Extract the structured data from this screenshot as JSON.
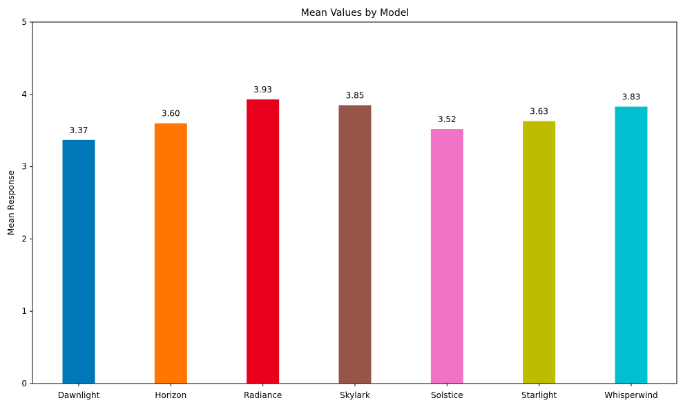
{
  "chart_data": {
    "type": "bar",
    "title": "Mean Values by Model",
    "xlabel": "",
    "ylabel": "Mean Response",
    "ylim": [
      0,
      5
    ],
    "yticks": [
      "0",
      "1",
      "2",
      "3",
      "4",
      "5"
    ],
    "categories": [
      "Dawnlight",
      "Horizon",
      "Radiance",
      "Skylark",
      "Solstice",
      "Starlight",
      "Whisperwind"
    ],
    "values": [
      3.37,
      3.6,
      3.93,
      3.85,
      3.52,
      3.63,
      3.83
    ],
    "value_labels": [
      "3.37",
      "3.60",
      "3.93",
      "3.85",
      "3.52",
      "3.63",
      "3.83"
    ],
    "colors": [
      "#0077b6",
      "#ff7700",
      "#e8001c",
      "#955548",
      "#f272c8",
      "#bcbd00",
      "#00bfd0"
    ],
    "grid": false,
    "legend": "none"
  }
}
